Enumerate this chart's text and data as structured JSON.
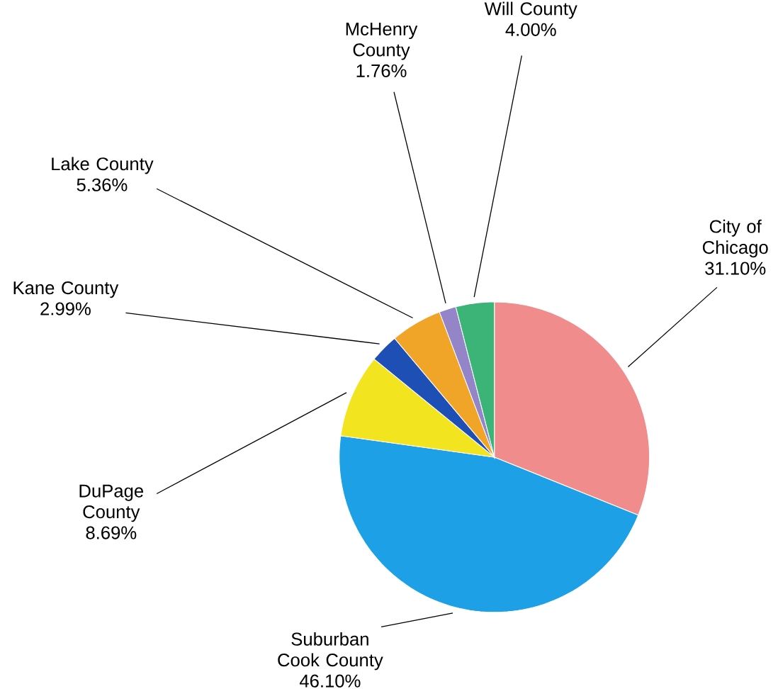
{
  "chart_data": {
    "type": "pie",
    "categories": [
      "City of Chicago",
      "Suburban Cook County",
      "DuPage County",
      "Kane County",
      "Lake County",
      "McHenry County",
      "Will County"
    ],
    "values": [
      31.1,
      46.1,
      8.69,
      2.99,
      5.36,
      1.76,
      4.0
    ],
    "value_labels": [
      "31.10%",
      "46.10%",
      "8.69%",
      "2.99%",
      "5.36%",
      "1.76%",
      "4.00%"
    ],
    "colors": [
      "#f08c8c",
      "#1ea0e6",
      "#f2e41e",
      "#1e4fb4",
      "#f0a428",
      "#9484c8",
      "#3cb478"
    ]
  }
}
